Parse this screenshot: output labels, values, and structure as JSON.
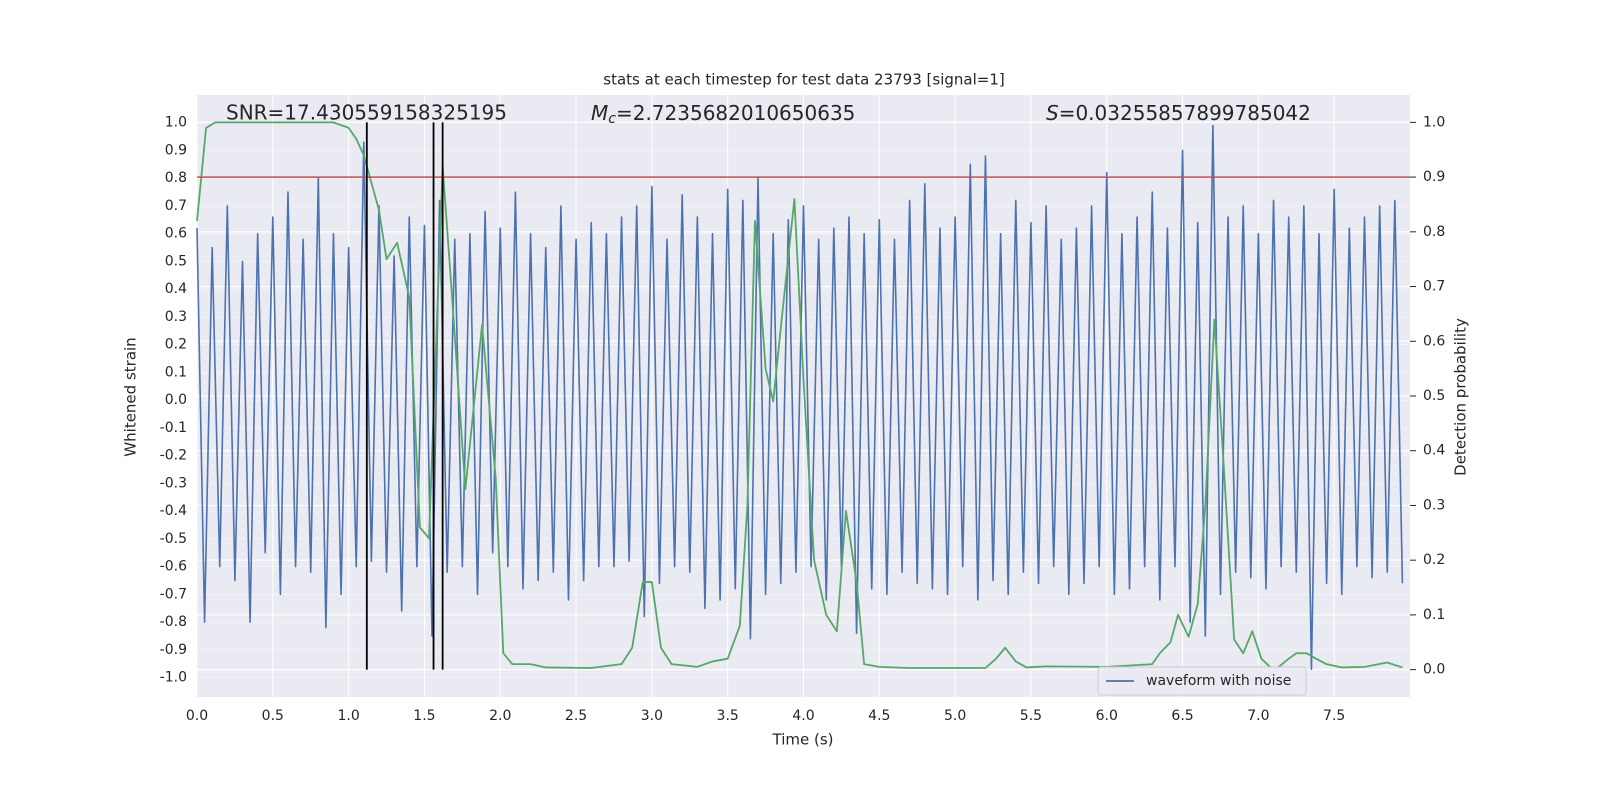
{
  "chart_data": {
    "type": "line",
    "title": "stats at each timestep for test data 23793 [signal=1]",
    "annotations": [
      {
        "text": "SNR=17.430559158325195"
      },
      {
        "symbol": "M",
        "sub": "c",
        "text": "=2.7235682010650635"
      },
      {
        "symbol": "S",
        "text": "=0.03255857899785042"
      }
    ],
    "xlabel": "Time (s)",
    "ylabel": "Whitened strain",
    "y2label": "Detection probability",
    "xlim": [
      0,
      8
    ],
    "ylim": [
      -1.07,
      1.1
    ],
    "y2lim": [
      -0.05,
      1.05
    ],
    "xticks": [
      {
        "value": 0,
        "label": "0.0"
      },
      0.5,
      {
        "value": 1,
        "label": "1.0"
      },
      1.5,
      {
        "value": 2,
        "label": "2.0"
      },
      2.5,
      {
        "value": 3,
        "label": "3.0"
      },
      3.5,
      {
        "value": 4,
        "label": "4.0"
      },
      4.5,
      {
        "value": 5,
        "label": "5.0"
      },
      5.5,
      {
        "value": 6,
        "label": "6.0"
      },
      6.5,
      {
        "value": 7,
        "label": "7.0"
      },
      7.5
    ],
    "yticks": [
      {
        "value": -1,
        "label": "-1.0"
      },
      -0.9,
      -0.8,
      -0.7,
      -0.6,
      -0.5,
      -0.4,
      -0.3,
      -0.2,
      -0.1,
      {
        "value": 0,
        "label": "0.0"
      },
      0.1,
      0.2,
      0.3,
      0.4,
      0.5,
      0.6,
      0.7,
      0.8,
      0.9,
      {
        "value": 1,
        "label": "1.0"
      }
    ],
    "y2ticks": [
      {
        "value": 0,
        "label": "0.0"
      },
      0.1,
      0.2,
      0.3,
      0.4,
      0.5,
      0.6,
      0.7,
      0.8,
      0.9,
      {
        "value": 1,
        "label": "1.0"
      }
    ],
    "grid": true,
    "legend": "lower right",
    "series": [
      {
        "name": "waveform with noise",
        "color": "#4c72b0",
        "x": [
          0,
          0.05,
          0.1,
          0.15,
          0.2,
          0.25,
          0.3,
          0.35,
          0.4,
          0.45,
          0.5,
          0.55,
          0.6,
          0.65,
          0.7,
          0.75,
          0.8,
          0.85,
          0.9,
          0.95,
          1,
          1.05,
          1.1,
          1.15,
          1.2,
          1.25,
          1.3,
          1.35,
          1.4,
          1.45,
          1.5,
          1.55,
          1.6,
          1.65,
          1.7,
          1.75,
          1.8,
          1.85,
          1.9,
          1.95,
          2,
          2.05,
          2.1,
          2.15,
          2.2,
          2.25,
          2.3,
          2.35,
          2.4,
          2.45,
          2.5,
          2.55,
          2.6,
          2.65,
          2.7,
          2.75,
          2.8,
          2.85,
          2.9,
          2.95,
          3,
          3.05,
          3.1,
          3.15,
          3.2,
          3.25,
          3.3,
          3.35,
          3.4,
          3.45,
          3.5,
          3.55,
          3.6,
          3.65,
          3.7,
          3.75,
          3.8,
          3.85,
          3.9,
          3.95,
          4,
          4.05,
          4.1,
          4.15,
          4.2,
          4.25,
          4.3,
          4.35,
          4.4,
          4.45,
          4.5,
          4.55,
          4.6,
          4.65,
          4.7,
          4.75,
          4.8,
          4.85,
          4.9,
          4.95,
          5,
          5.05,
          5.1,
          5.15,
          5.2,
          5.25,
          5.3,
          5.35,
          5.4,
          5.45,
          5.5,
          5.55,
          5.6,
          5.65,
          5.7,
          5.75,
          5.8,
          5.85,
          5.9,
          5.95,
          6,
          6.05,
          6.1,
          6.15,
          6.2,
          6.25,
          6.3,
          6.35,
          6.4,
          6.45,
          6.5,
          6.55,
          6.6,
          6.65,
          6.7,
          6.75,
          6.8,
          6.85,
          6.9,
          6.95,
          7,
          7.05,
          7.1,
          7.15,
          7.2,
          7.25,
          7.3,
          7.35,
          7.4,
          7.45,
          7.5,
          7.55,
          7.6,
          7.65,
          7.7,
          7.75,
          7.8,
          7.85,
          7.9,
          7.95
        ],
        "values": [
          0.62,
          -0.8,
          0.55,
          -0.6,
          0.7,
          -0.65,
          0.5,
          -0.8,
          0.6,
          -0.55,
          0.66,
          -0.7,
          0.75,
          -0.6,
          0.58,
          -0.62,
          0.8,
          -0.82,
          0.6,
          -0.7,
          0.55,
          -0.6,
          0.93,
          -0.58,
          0.7,
          -0.62,
          0.52,
          -0.76,
          0.66,
          -0.6,
          0.63,
          -0.85,
          0.72,
          -0.62,
          0.58,
          -0.6,
          0.6,
          -0.7,
          0.68,
          -0.55,
          0.62,
          -0.6,
          0.75,
          -0.68,
          0.6,
          -0.65,
          0.55,
          -0.62,
          0.7,
          -0.72,
          0.58,
          -0.65,
          0.64,
          -0.6,
          0.6,
          -0.6,
          0.66,
          -0.58,
          0.7,
          -0.78,
          0.77,
          -0.66,
          0.58,
          -0.6,
          0.74,
          -0.62,
          0.66,
          -0.75,
          0.6,
          -0.72,
          0.76,
          -0.68,
          0.72,
          -0.86,
          0.8,
          -0.7,
          0.6,
          -0.66,
          0.65,
          -0.62,
          0.7,
          -0.6,
          0.58,
          -0.72,
          0.62,
          -0.6,
          0.66,
          -0.84,
          0.6,
          -0.68,
          0.65,
          -0.7,
          0.58,
          -0.62,
          0.72,
          -0.66,
          0.78,
          -0.68,
          0.62,
          -0.7,
          0.66,
          -0.6,
          0.85,
          -0.72,
          0.88,
          -0.65,
          0.6,
          -0.7,
          0.72,
          -0.62,
          0.64,
          -0.66,
          0.7,
          -0.6,
          0.58,
          -0.7,
          0.62,
          -0.66,
          0.7,
          -0.6,
          0.82,
          -0.7,
          0.6,
          -0.68,
          0.66,
          -0.6,
          0.75,
          -0.72,
          0.62,
          -0.6,
          0.9,
          -0.8,
          0.64,
          -0.85,
          0.99,
          -0.7,
          0.66,
          -0.62,
          0.7,
          -0.64,
          0.6,
          -0.68,
          0.72,
          -0.6,
          0.66,
          -0.62,
          0.7,
          -0.97,
          0.6,
          -0.66,
          0.76,
          -0.7,
          0.62,
          -0.6,
          0.66,
          -0.64,
          0.7,
          -0.62,
          0.72,
          -0.66
        ]
      },
      {
        "color": "#55a868",
        "axis": "y2",
        "x": [
          0,
          0.06,
          0.12,
          0.3,
          0.6,
          0.9,
          1,
          1.05,
          1.1,
          1.15,
          1.2,
          1.25,
          1.32,
          1.4,
          1.47,
          1.53,
          1.62,
          1.68,
          1.77,
          1.88,
          1.97,
          2.02,
          2.08,
          2.2,
          2.3,
          2.6,
          2.8,
          2.87,
          2.94,
          3,
          3.06,
          3.13,
          3.3,
          3.4,
          3.5,
          3.58,
          3.63,
          3.68,
          3.75,
          3.8,
          3.86,
          3.94,
          4,
          4.07,
          4.15,
          4.22,
          4.28,
          4.35,
          4.4,
          4.5,
          4.7,
          5,
          5.2,
          5.27,
          5.33,
          5.4,
          5.47,
          5.6,
          6,
          6.3,
          6.35,
          6.42,
          6.47,
          6.54,
          6.6,
          6.65,
          6.71,
          6.77,
          6.84,
          6.9,
          6.96,
          7.02,
          7.08,
          7.13,
          7.2,
          7.25,
          7.32,
          7.38,
          7.45,
          7.55,
          7.7,
          7.85,
          7.95
        ],
        "values": [
          0.82,
          0.99,
          1,
          1,
          1,
          1,
          0.99,
          0.97,
          0.94,
          0.89,
          0.84,
          0.75,
          0.78,
          0.68,
          0.26,
          0.24,
          0.92,
          0.69,
          0.33,
          0.63,
          0.35,
          0.03,
          0.01,
          0.01,
          0.004,
          0.003,
          0.01,
          0.04,
          0.16,
          0.16,
          0.04,
          0.01,
          0.005,
          0.015,
          0.02,
          0.08,
          0.3,
          0.82,
          0.55,
          0.49,
          0.65,
          0.86,
          0.53,
          0.2,
          0.1,
          0.07,
          0.29,
          0.16,
          0.01,
          0.005,
          0.003,
          0.003,
          0.003,
          0.02,
          0.04,
          0.015,
          0.004,
          0.006,
          0.005,
          0.01,
          0.03,
          0.05,
          0.1,
          0.06,
          0.12,
          0.3,
          0.64,
          0.38,
          0.055,
          0.03,
          0.07,
          0.02,
          0.004,
          0.004,
          0.02,
          0.03,
          0.03,
          0.02,
          0.01,
          0.004,
          0.005,
          0.013,
          0.004
        ]
      }
    ],
    "hline": {
      "value": 0.9,
      "axis": "y2",
      "color": "#c44e52"
    },
    "vlines": {
      "x": [
        1.12,
        1.56,
        1.62
      ],
      "ymin": 0,
      "ymax": 1,
      "axis": "y2",
      "color": "#000000"
    }
  }
}
